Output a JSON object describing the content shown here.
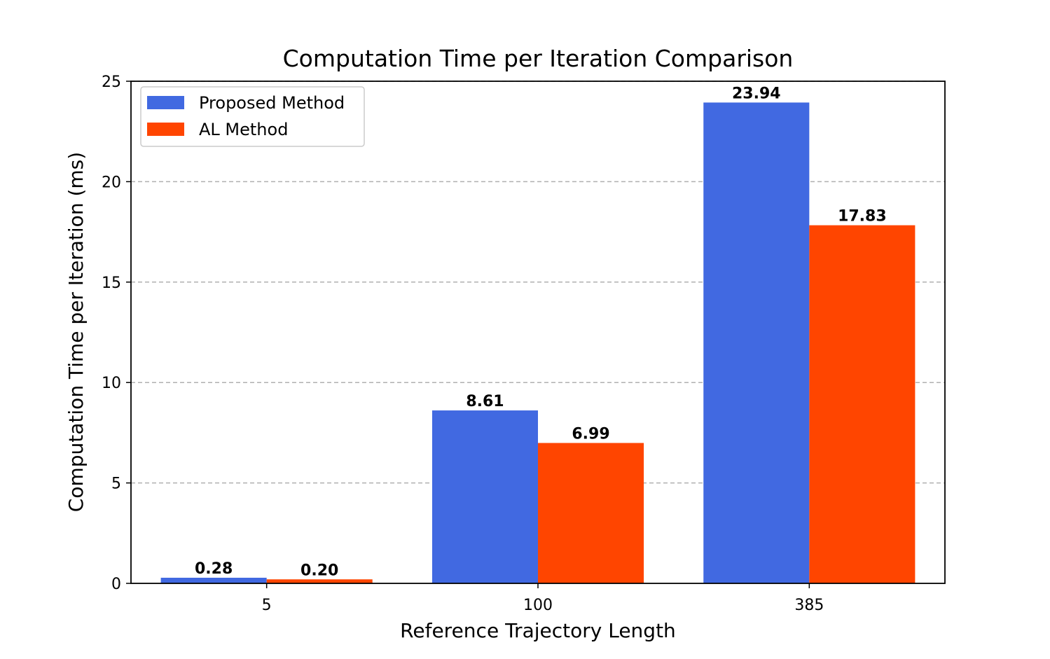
{
  "chart_data": {
    "type": "bar",
    "title": "Computation Time per Iteration Comparison",
    "xlabel": "Reference Trajectory Length",
    "ylabel": "Computation Time per Iteration (ms)",
    "categories": [
      "5",
      "100",
      "385"
    ],
    "series": [
      {
        "name": "Proposed Method",
        "values": [
          0.28,
          8.61,
          23.94
        ],
        "labels": [
          "0.28",
          "8.61",
          "23.94"
        ],
        "color": "#4169E1"
      },
      {
        "name": "AL Method",
        "values": [
          0.2,
          6.99,
          17.83
        ],
        "labels": [
          "0.20",
          "6.99",
          "17.83"
        ],
        "color": "#FF4500"
      }
    ],
    "ylim": [
      0,
      25
    ],
    "yticks": [
      0,
      5,
      10,
      15,
      20,
      25
    ],
    "ytick_labels": [
      "0",
      "5",
      "10",
      "15",
      "20",
      "25"
    ],
    "grid": "horizontal dashed",
    "legend_position": "upper-left"
  }
}
